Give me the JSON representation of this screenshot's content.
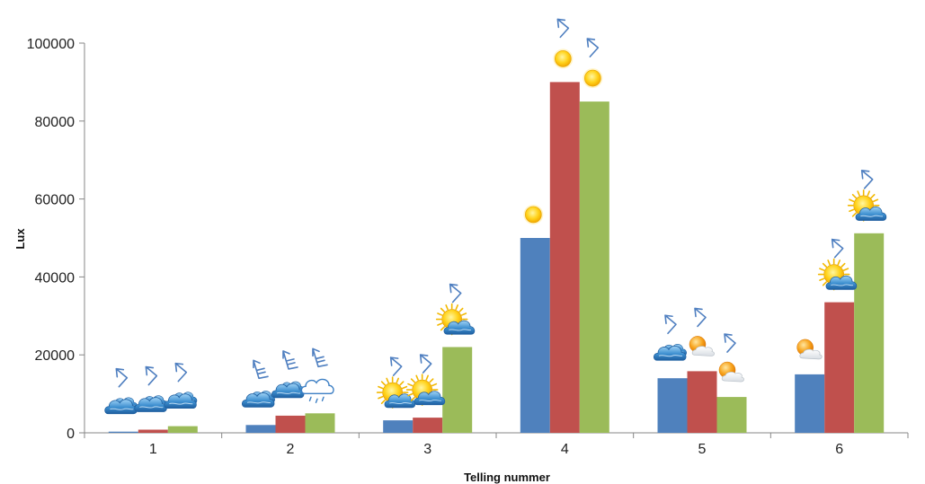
{
  "chart_data": {
    "type": "bar",
    "title": "",
    "xlabel": "Telling nummer",
    "ylabel": "Lux",
    "ylim": [
      0,
      100000
    ],
    "yticks": [
      0,
      20000,
      40000,
      60000,
      80000,
      100000
    ],
    "grid": false,
    "legend": "none",
    "categories": [
      "1",
      "2",
      "3",
      "4",
      "5",
      "6"
    ],
    "series": [
      {
        "color": "#4f81bd",
        "values": [
          300,
          2000,
          3200,
          50000,
          14000,
          15000
        ]
      },
      {
        "color": "#c0504d",
        "values": [
          800,
          4400,
          3900,
          90000,
          15800,
          33500
        ]
      },
      {
        "color": "#9bbb59",
        "values": [
          1700,
          5000,
          22000,
          85000,
          9200,
          51200
        ]
      }
    ],
    "weather_icons": [
      [
        "cloud-icon",
        "cloud-icon",
        "cloud-icon"
      ],
      [
        "cloud-icon",
        "cloud-icon",
        "rain-cloud-icon"
      ],
      [
        "sun-cloud-icon",
        "sun-cloud-icon",
        "sun-cloud-icon"
      ],
      [
        "sun-icon",
        "sun-icon",
        "sun-icon"
      ],
      [
        "cloud-icon",
        "sun-haze-icon",
        "sun-haze-icon"
      ],
      [
        "sun-haze-icon",
        "sun-cloud-icon",
        "sun-cloud-icon"
      ]
    ],
    "wind_icons": [
      [
        "wind-arrow-icon",
        "wind-arrow-icon",
        "wind-arrow-icon"
      ],
      [
        "wind-barb-icon",
        "wind-barb-icon",
        "wind-barb-icon"
      ],
      [
        "wind-arrow-icon",
        "wind-arrow-icon",
        "wind-arrow-icon"
      ],
      [
        "",
        "wind-arrow-icon",
        "wind-arrow-icon"
      ],
      [
        "wind-arrow-icon",
        "wind-arrow-icon",
        "wind-arrow-icon"
      ],
      [
        "",
        "wind-arrow-icon",
        "wind-arrow-icon"
      ]
    ]
  }
}
